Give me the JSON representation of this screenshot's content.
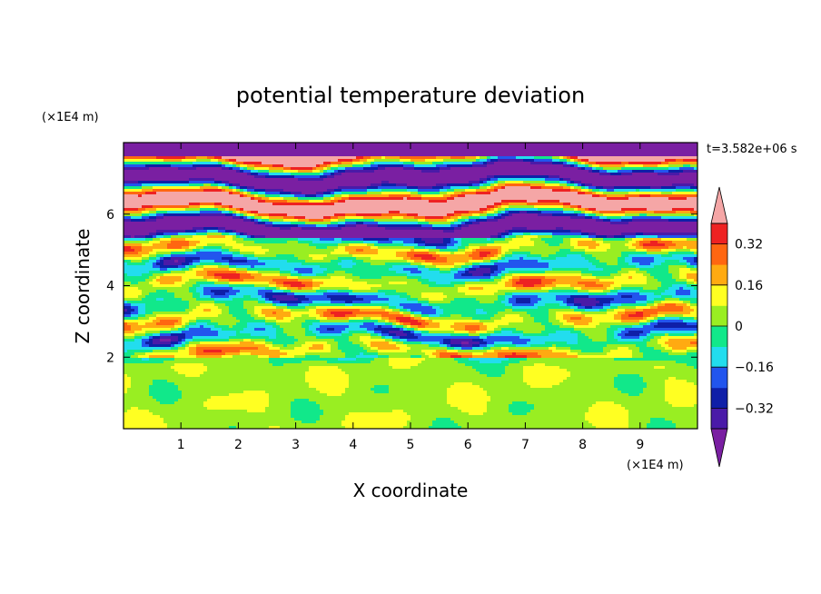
{
  "chart_data": {
    "type": "heatmap",
    "title": "potential temperature deviation",
    "xlabel": "X coordinate",
    "ylabel": "Z coordinate",
    "x_unit": "(×1E4 m)",
    "y_unit": "(×1E4 m)",
    "time_label": "t=3.582e+06 s",
    "xlim": [
      0,
      10
    ],
    "ylim": [
      0,
      8
    ],
    "x_ticks": [
      1,
      2,
      3,
      4,
      5,
      6,
      7,
      8,
      9
    ],
    "y_ticks": [
      2,
      4,
      6
    ],
    "colorbar": {
      "levels": [
        -0.4,
        -0.32,
        -0.24,
        -0.16,
        -0.08,
        0,
        0.08,
        0.16,
        0.24,
        0.32,
        0.4
      ],
      "tick_labels": [
        "0.32",
        "0.16",
        "0",
        "−0.16",
        "−0.32"
      ],
      "tick_values": [
        0.32,
        0.16,
        0,
        -0.16,
        -0.32
      ],
      "extend": "both",
      "colors": [
        "#7a1fa2",
        "#4a1aa8",
        "#0f1fa8",
        "#2255ee",
        "#22ddee",
        "#11e88a",
        "#99ee22",
        "#ffff22",
        "#ffaa11",
        "#ff6611",
        "#ee2222",
        "#f5a6a6"
      ]
    },
    "bands_description_levels": {
      "lower_layer": {
        "z_range": [
          0,
          2
        ],
        "dominant_values": [
          0,
          0.08
        ]
      },
      "middle_layer": {
        "z_range": [
          2,
          5.5
        ],
        "mixed_values": [
          -0.4,
          0.4
        ]
      },
      "upper_layer": {
        "z_range": [
          5.5,
          8
        ],
        "dominant_values": [
          -0.4,
          0.4
        ]
      }
    }
  }
}
